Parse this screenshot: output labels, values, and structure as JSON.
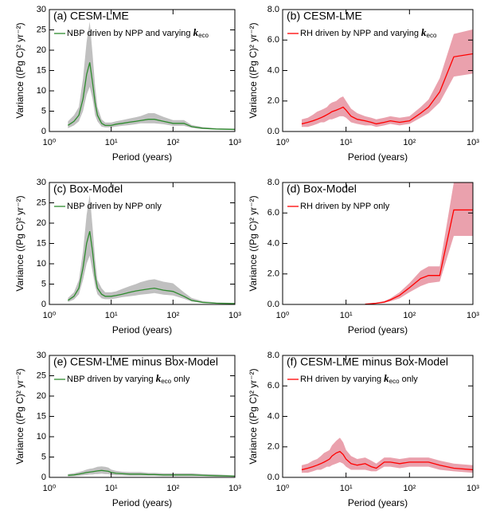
{
  "chart_data": [
    {
      "type": "line",
      "title": "(a) CESM-LME",
      "xlabel": "Period (years)",
      "ylabel": "Variance ((Pg C)² yr⁻²)",
      "xscale": "log",
      "xlim": [
        1,
        1000
      ],
      "xticks": [
        {
          "value": 1,
          "label": "10⁰"
        },
        {
          "value": 10,
          "label": "10¹"
        },
        {
          "value": 100,
          "label": "10²"
        },
        {
          "value": 1000,
          "label": "10³"
        }
      ],
      "ylim": [
        0,
        30
      ],
      "yticks": [
        0,
        5,
        10,
        15,
        20,
        25,
        30
      ],
      "legend": "upper left",
      "x": [
        2,
        2.5,
        3,
        3.5,
        4,
        4.5,
        5,
        5.5,
        6,
        7,
        8,
        9,
        10,
        12,
        15,
        20,
        25,
        30,
        40,
        50,
        70,
        100,
        150,
        200,
        300,
        500,
        1000
      ],
      "series": [
        {
          "name": [
            "NBP driven by NPP and varying ",
            "k",
            "eco"
          ],
          "color": "#2e8b2e",
          "band_color": "#c0c0c0",
          "values": [
            1.5,
            2.5,
            4,
            8,
            14,
            17,
            12,
            7,
            4,
            2,
            1.5,
            1.5,
            1.5,
            1.8,
            2,
            2.3,
            2.5,
            2.7,
            3,
            3,
            2.5,
            2,
            2,
            1.2,
            0.8,
            0.6,
            0.5
          ],
          "lower": [
            0.8,
            1.5,
            2.5,
            5,
            9,
            11,
            8,
            4,
            2.5,
            1.2,
            1,
            1,
            1,
            1.2,
            1.4,
            1.6,
            1.8,
            2,
            2,
            2,
            1.8,
            1.4,
            1.4,
            0.9,
            0.6,
            0.5,
            0.4
          ],
          "upper": [
            2.5,
            4,
            6,
            13,
            22,
            27,
            19,
            11,
            6,
            3,
            2.2,
            2.2,
            2.2,
            2.5,
            2.8,
            3.2,
            3.5,
            3.8,
            4.5,
            4.5,
            3.6,
            2.8,
            2.8,
            1.6,
            1.1,
            0.8,
            0.7
          ]
        }
      ]
    },
    {
      "type": "line",
      "title": "(b) CESM-LME",
      "xlabel": "Period (years)",
      "ylabel": "Variance ((Pg C)² yr⁻²)",
      "xscale": "log",
      "xlim": [
        1,
        1000
      ],
      "xticks": [
        {
          "value": 1,
          "label": "10⁰"
        },
        {
          "value": 10,
          "label": "10¹"
        },
        {
          "value": 100,
          "label": "10²"
        },
        {
          "value": 1000,
          "label": "10³"
        }
      ],
      "ylim": [
        0,
        8
      ],
      "yticks": [
        {
          "value": 0,
          "label": "0.0"
        },
        {
          "value": 2,
          "label": "2.0"
        },
        {
          "value": 4,
          "label": "4.0"
        },
        {
          "value": 6,
          "label": "6.0"
        },
        {
          "value": 8,
          "label": "8.0"
        }
      ],
      "legend": "upper left",
      "x": [
        2,
        2.5,
        3,
        3.5,
        4,
        4.5,
        5,
        5.5,
        6,
        7,
        8,
        9,
        10,
        12,
        15,
        20,
        25,
        30,
        40,
        50,
        70,
        100,
        150,
        200,
        300,
        500,
        1000
      ],
      "series": [
        {
          "name": [
            "RH driven by NPP and varying ",
            "k",
            "eco"
          ],
          "color": "#ff0000",
          "band_color": "#eaa1ad",
          "values": [
            0.5,
            0.6,
            0.7,
            0.8,
            0.9,
            1,
            1.1,
            1.2,
            1.3,
            1.4,
            1.5,
            1.6,
            1.4,
            1,
            0.8,
            0.7,
            0.6,
            0.5,
            0.6,
            0.7,
            0.6,
            0.7,
            1.2,
            1.6,
            2.6,
            4.9,
            5.1
          ],
          "lower": [
            0.3,
            0.3,
            0.4,
            0.5,
            0.6,
            0.6,
            0.7,
            0.8,
            0.8,
            0.9,
            1,
            1,
            0.9,
            0.6,
            0.5,
            0.4,
            0.4,
            0.3,
            0.4,
            0.5,
            0.4,
            0.5,
            0.9,
            1.2,
            1.9,
            3.6,
            3.8
          ],
          "upper": [
            0.8,
            0.9,
            1.1,
            1.3,
            1.4,
            1.5,
            1.6,
            1.8,
            1.9,
            2,
            2.2,
            2.3,
            2,
            1.5,
            1.2,
            1,
            0.9,
            0.8,
            0.9,
            1,
            0.9,
            1,
            1.6,
            2.1,
            3.5,
            6.4,
            6.7
          ]
        }
      ]
    },
    {
      "type": "line",
      "title": "(c) Box-Model",
      "xlabel": "Period (years)",
      "ylabel": "Variance ((Pg C)² yr⁻²)",
      "xscale": "log",
      "xlim": [
        1,
        1000
      ],
      "xticks": [
        {
          "value": 1,
          "label": "10⁰"
        },
        {
          "value": 10,
          "label": "10¹"
        },
        {
          "value": 100,
          "label": "10²"
        },
        {
          "value": 1000,
          "label": "10³"
        }
      ],
      "ylim": [
        0,
        30
      ],
      "yticks": [
        0,
        5,
        10,
        15,
        20,
        25,
        30
      ],
      "legend": "upper left",
      "x": [
        2,
        2.5,
        3,
        3.5,
        4,
        4.5,
        5,
        5.5,
        6,
        7,
        8,
        9,
        10,
        12,
        15,
        20,
        25,
        30,
        40,
        50,
        70,
        100,
        150,
        200,
        300,
        500,
        1000
      ],
      "series": [
        {
          "name": [
            "NBP driven by NPP only"
          ],
          "color": "#2e8b2e",
          "band_color": "#c0c0c0",
          "values": [
            1,
            2,
            4,
            9,
            15,
            18,
            13,
            7,
            4,
            2.5,
            2,
            2,
            2,
            2.2,
            2.5,
            3,
            3.3,
            3.5,
            3.8,
            4,
            3.5,
            3.2,
            2,
            1,
            0.5,
            0.3,
            0.2
          ],
          "lower": [
            0.6,
            1.2,
            2.5,
            6,
            10,
            12,
            8,
            4.5,
            2.5,
            1.5,
            1.3,
            1.3,
            1.3,
            1.5,
            1.8,
            2,
            2.2,
            2.4,
            2.6,
            2.8,
            2.4,
            2.2,
            1.4,
            0.7,
            0.4,
            0.2,
            0.1
          ],
          "upper": [
            1.6,
            3,
            6,
            13,
            22,
            27,
            19,
            11,
            6,
            4,
            3,
            3,
            3,
            3.2,
            3.8,
            4.5,
            5,
            5.5,
            6,
            6.2,
            5.6,
            5.2,
            3,
            1.6,
            0.8,
            0.5,
            0.4
          ]
        }
      ]
    },
    {
      "type": "line",
      "title": "(d) Box-Model",
      "xlabel": "Period (years)",
      "ylabel": "Variance ((Pg C)² yr⁻²)",
      "xscale": "log",
      "xlim": [
        1,
        1000
      ],
      "xticks": [
        {
          "value": 1,
          "label": "10⁰"
        },
        {
          "value": 10,
          "label": "10¹"
        },
        {
          "value": 100,
          "label": "10²"
        },
        {
          "value": 1000,
          "label": "10³"
        }
      ],
      "ylim": [
        0,
        8
      ],
      "yticks": [
        {
          "value": 0,
          "label": "0.0"
        },
        {
          "value": 2,
          "label": "2.0"
        },
        {
          "value": 4,
          "label": "4.0"
        },
        {
          "value": 6,
          "label": "6.0"
        },
        {
          "value": 8,
          "label": "8.0"
        }
      ],
      "legend": "upper left",
      "x": [
        2,
        2.5,
        3,
        3.5,
        4,
        4.5,
        5,
        5.5,
        6,
        7,
        8,
        9,
        10,
        12,
        15,
        20,
        25,
        30,
        40,
        50,
        70,
        100,
        150,
        200,
        300,
        500,
        1000
      ],
      "series": [
        {
          "name": [
            "RH driven by NPP only"
          ],
          "color": "#ff0000",
          "band_color": "#eaa1ad",
          "values": [
            null,
            null,
            null,
            null,
            null,
            null,
            null,
            null,
            null,
            null,
            null,
            null,
            null,
            null,
            null,
            0.02,
            0.05,
            0.08,
            0.15,
            0.3,
            0.6,
            1.1,
            1.7,
            1.9,
            1.9,
            6.2,
            6.2
          ],
          "lower": [
            null,
            null,
            null,
            null,
            null,
            null,
            null,
            null,
            null,
            null,
            null,
            null,
            null,
            null,
            null,
            0.01,
            0.03,
            0.05,
            0.1,
            0.2,
            0.4,
            0.8,
            1.2,
            1.4,
            1.5,
            4.5,
            4.5
          ],
          "upper": [
            null,
            null,
            null,
            null,
            null,
            null,
            null,
            null,
            null,
            null,
            null,
            null,
            null,
            null,
            null,
            0.03,
            0.07,
            0.12,
            0.22,
            0.4,
            0.8,
            1.4,
            2.2,
            2.5,
            2.5,
            8,
            8
          ]
        }
      ]
    },
    {
      "type": "line",
      "title": "(e) CESM-LME minus Box-Model",
      "xlabel": "Period (years)",
      "ylabel": "Variance ((Pg C)² yr⁻²)",
      "xscale": "log",
      "xlim": [
        1,
        1000
      ],
      "xticks": [
        {
          "value": 1,
          "label": "10⁰"
        },
        {
          "value": 10,
          "label": "10¹"
        },
        {
          "value": 100,
          "label": "10²"
        },
        {
          "value": 1000,
          "label": "10³"
        }
      ],
      "ylim": [
        0,
        30
      ],
      "yticks": [
        0,
        5,
        10,
        15,
        20,
        25,
        30
      ],
      "legend": "upper left",
      "x": [
        2,
        2.5,
        3,
        3.5,
        4,
        4.5,
        5,
        5.5,
        6,
        7,
        8,
        9,
        10,
        12,
        15,
        20,
        25,
        30,
        40,
        50,
        70,
        100,
        150,
        200,
        300,
        500,
        1000
      ],
      "series": [
        {
          "name": [
            "NBP driven by varying ",
            "k",
            "eco",
            " only"
          ],
          "color": "#2e8b2e",
          "band_color": "#c0c0c0",
          "values": [
            0.5,
            0.6,
            0.8,
            1,
            1.2,
            1.3,
            1.4,
            1.5,
            1.6,
            1.7,
            1.6,
            1.5,
            1.2,
            1,
            0.9,
            0.8,
            0.8,
            0.8,
            0.7,
            0.7,
            0.6,
            0.6,
            0.6,
            0.6,
            0.5,
            0.4,
            0.3
          ],
          "lower": [
            0.2,
            0.3,
            0.4,
            0.5,
            0.6,
            0.7,
            0.7,
            0.8,
            0.8,
            0.9,
            0.8,
            0.8,
            0.6,
            0.5,
            0.5,
            0.4,
            0.4,
            0.4,
            0.4,
            0.4,
            0.3,
            0.3,
            0.3,
            0.3,
            0.3,
            0.2,
            0.2
          ],
          "upper": [
            0.8,
            1,
            1.3,
            1.6,
            1.9,
            2.1,
            2.2,
            2.4,
            2.6,
            2.7,
            2.6,
            2.4,
            1.9,
            1.6,
            1.4,
            1.3,
            1.3,
            1.3,
            1.1,
            1.1,
            1,
            1,
            1,
            1,
            0.8,
            0.7,
            0.5
          ]
        }
      ]
    },
    {
      "type": "line",
      "title": "(f) CESM-LME minus Box-Model",
      "xlabel": "Period (years)",
      "ylabel": "Variance ((Pg C)² yr⁻²)",
      "xscale": "log",
      "xlim": [
        1,
        1000
      ],
      "xticks": [
        {
          "value": 1,
          "label": "10⁰"
        },
        {
          "value": 10,
          "label": "10¹"
        },
        {
          "value": 100,
          "label": "10²"
        },
        {
          "value": 1000,
          "label": "10³"
        }
      ],
      "ylim": [
        0,
        8
      ],
      "yticks": [
        {
          "value": 0,
          "label": "0.0"
        },
        {
          "value": 2,
          "label": "2.0"
        },
        {
          "value": 4,
          "label": "4.0"
        },
        {
          "value": 6,
          "label": "6.0"
        },
        {
          "value": 8,
          "label": "8.0"
        }
      ],
      "legend": "upper left",
      "x": [
        2,
        2.5,
        3,
        3.5,
        4,
        4.5,
        5,
        5.5,
        6,
        7,
        8,
        9,
        10,
        12,
        15,
        20,
        25,
        30,
        40,
        50,
        70,
        100,
        150,
        200,
        300,
        500,
        1000
      ],
      "series": [
        {
          "name": [
            "RH driven by varying ",
            "k",
            "eco",
            " only"
          ],
          "color": "#ff0000",
          "band_color": "#eaa1ad",
          "values": [
            0.5,
            0.6,
            0.7,
            0.8,
            0.9,
            1,
            1.1,
            1.2,
            1.4,
            1.6,
            1.7,
            1.5,
            1.2,
            0.9,
            0.8,
            0.9,
            0.7,
            0.6,
            1,
            1,
            0.9,
            1,
            1,
            1,
            0.8,
            0.6,
            0.5
          ],
          "lower": [
            0.3,
            0.3,
            0.4,
            0.5,
            0.5,
            0.6,
            0.7,
            0.7,
            0.8,
            0.9,
            1,
            0.9,
            0.7,
            0.5,
            0.5,
            0.5,
            0.4,
            0.4,
            0.7,
            0.7,
            0.6,
            0.7,
            0.7,
            0.7,
            0.5,
            0.4,
            0.3
          ],
          "upper": [
            0.8,
            0.9,
            1.1,
            1.2,
            1.4,
            1.6,
            1.7,
            1.8,
            2.1,
            2.4,
            2.6,
            2.3,
            1.8,
            1.4,
            1.2,
            1.3,
            1.1,
            0.9,
            1.3,
            1.3,
            1.2,
            1.3,
            1.3,
            1.3,
            1.1,
            0.9,
            0.8
          ]
        }
      ]
    }
  ]
}
